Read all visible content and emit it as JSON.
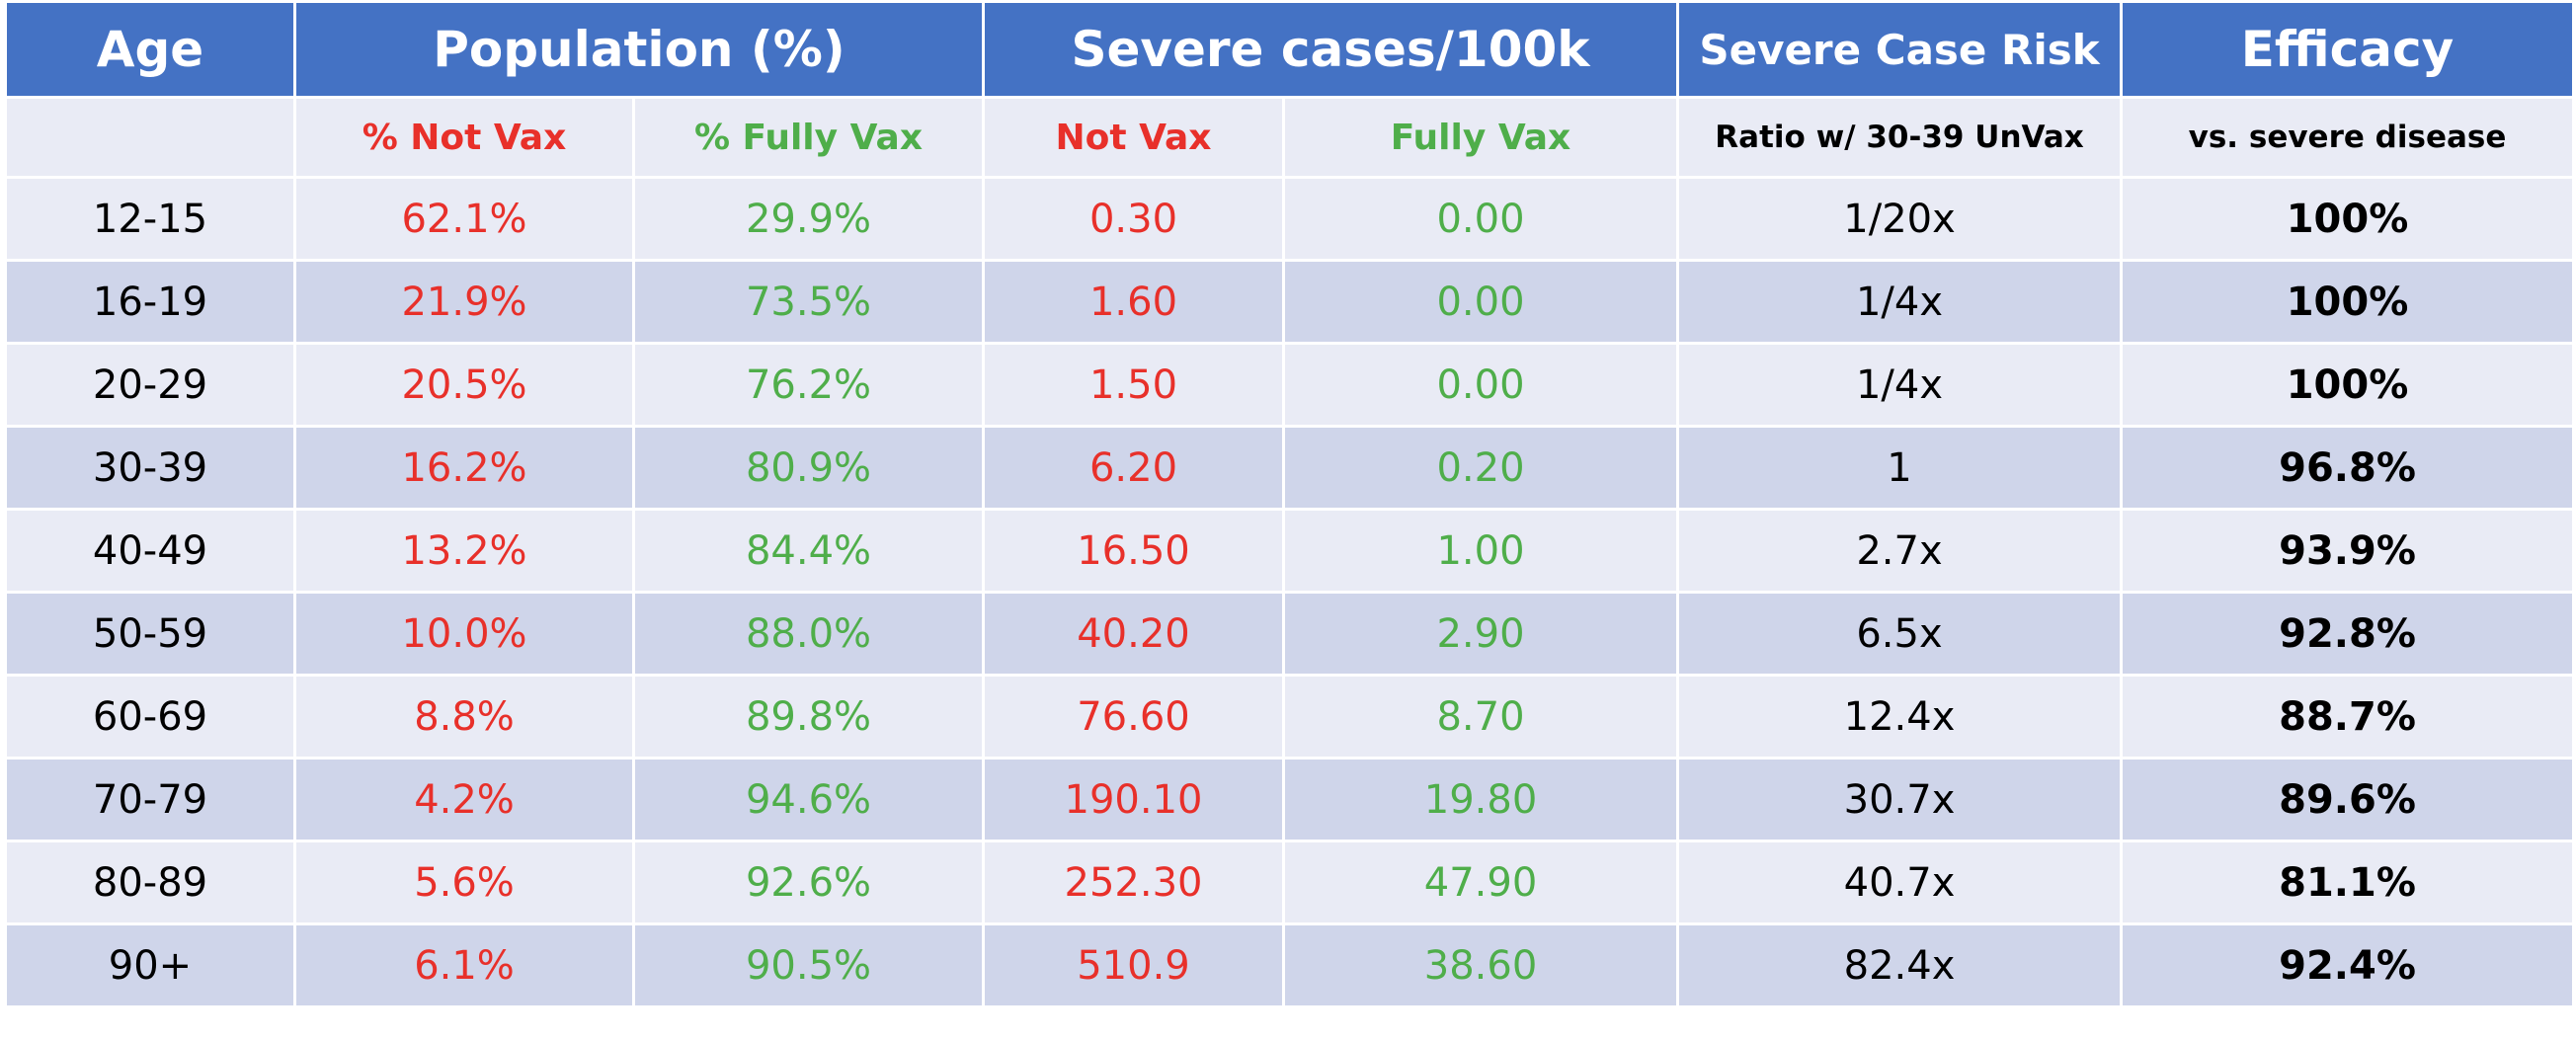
{
  "table": {
    "header": [
      "Age",
      "Population (%)",
      "Severe cases/100k",
      "Severe Case Risk",
      "Efficacy"
    ],
    "subheader": [
      "% Not Vax",
      "% Fully Vax",
      "Not Vax",
      "Fully Vax",
      "Ratio w/ 30-39 UnVax",
      "vs. severe disease"
    ],
    "rows": [
      [
        "12-15",
        "62.1%",
        "29.9%",
        "0.30",
        "0.00",
        "1/20x",
        "100%"
      ],
      [
        "16-19",
        "21.9%",
        "73.5%",
        "1.60",
        "0.00",
        "1/4x",
        "100%"
      ],
      [
        "20-29",
        "20.5%",
        "76.2%",
        "1.50",
        "0.00",
        "1/4x",
        "100%"
      ],
      [
        "30-39",
        "16.2%",
        "80.9%",
        "6.20",
        "0.20",
        "1",
        "96.8%"
      ],
      [
        "40-49",
        "13.2%",
        "84.4%",
        "16.50",
        "1.00",
        "2.7x",
        "93.9%"
      ],
      [
        "50-59",
        "10.0%",
        "88.0%",
        "40.20",
        "2.90",
        "6.5x",
        "92.8%"
      ],
      [
        "60-69",
        "8.8%",
        "89.8%",
        "76.60",
        "8.70",
        "12.4x",
        "88.7%"
      ],
      [
        "70-79",
        "4.2%",
        "94.6%",
        "190.10",
        "19.80",
        "30.7x",
        "89.6%"
      ],
      [
        "80-89",
        "5.6%",
        "92.6%",
        "252.30",
        "47.90",
        "40.7x",
        "81.1%"
      ],
      [
        "90+",
        "6.1%",
        "90.5%",
        "510.9",
        "38.60",
        "82.4x",
        "92.4%"
      ]
    ]
  }
}
